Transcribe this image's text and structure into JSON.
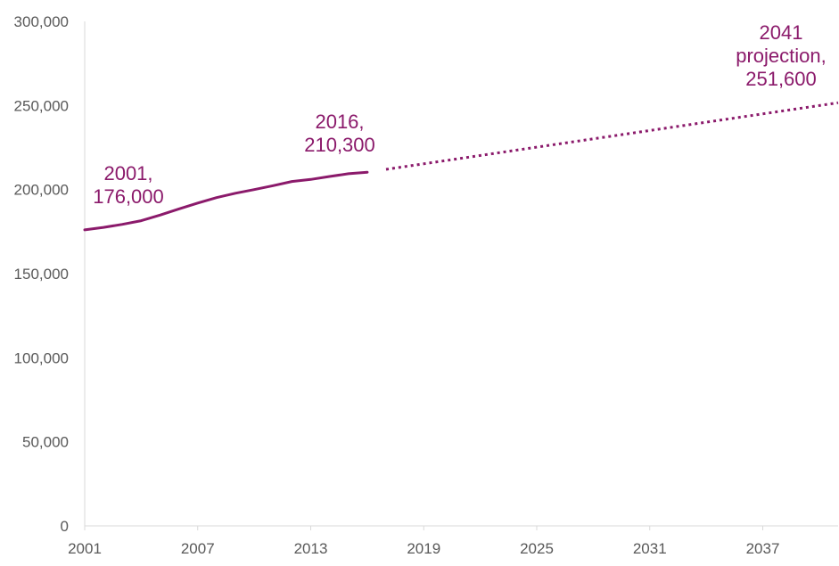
{
  "colors": {
    "series": "#8B1A6B",
    "axis": "#D9D9D9",
    "tick_text": "#595959"
  },
  "chart_data": {
    "type": "line",
    "title": "",
    "xlabel": "",
    "ylabel": "",
    "xlim": [
      2001,
      2041
    ],
    "ylim": [
      0,
      300000
    ],
    "grid": false,
    "legend": "none",
    "x_ticks": [
      {
        "value": 2001,
        "label": "2001"
      },
      {
        "value": 2007,
        "label": "2007"
      },
      {
        "value": 2013,
        "label": "2013"
      },
      {
        "value": 2019,
        "label": "2019"
      },
      {
        "value": 2025,
        "label": "2025"
      },
      {
        "value": 2031,
        "label": "2031"
      },
      {
        "value": 2037,
        "label": "2037"
      }
    ],
    "y_ticks": [
      {
        "value": 0,
        "label": "0"
      },
      {
        "value": 50000,
        "label": "50,000"
      },
      {
        "value": 100000,
        "label": "100,000"
      },
      {
        "value": 150000,
        "label": "150,000"
      },
      {
        "value": 200000,
        "label": "200,000"
      },
      {
        "value": 250000,
        "label": "250,000"
      },
      {
        "value": 300000,
        "label": "300,000"
      }
    ],
    "series": [
      {
        "style": "solid",
        "x": [
          2001,
          2002,
          2003,
          2004,
          2005,
          2006,
          2007,
          2008,
          2009,
          2010,
          2011,
          2012,
          2013,
          2014,
          2015,
          2016
        ],
        "values": [
          176000,
          177500,
          179300,
          181500,
          184800,
          188500,
          192000,
          195200,
          197800,
          200000,
          202300,
          204800,
          206000,
          207800,
          209400,
          210300
        ]
      },
      {
        "style": "dotted",
        "x": [
          2017,
          2041
        ],
        "values": [
          212000,
          251600
        ]
      }
    ],
    "annotations": [
      {
        "id": "start",
        "lines": [
          "2001,",
          "176,000"
        ]
      },
      {
        "id": "latest",
        "lines": [
          "2016,",
          "210,300"
        ]
      },
      {
        "id": "projection",
        "lines": [
          "2041",
          "projection,",
          "251,600"
        ]
      }
    ]
  }
}
